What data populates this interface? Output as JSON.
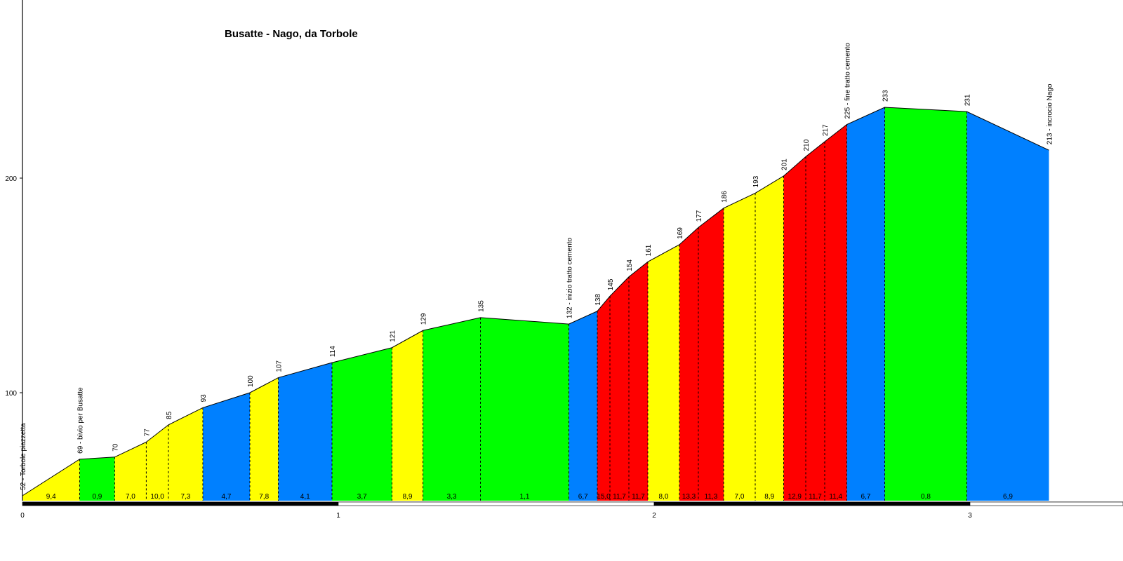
{
  "chart_data": {
    "type": "area",
    "title": "Busatte - Nago, da Torbole",
    "xlabel": "",
    "ylabel": "",
    "xlim": [
      0,
      3.4
    ],
    "ylim": [
      49,
      283
    ],
    "x_ticks": [
      "0",
      "1",
      "2",
      "3"
    ],
    "y_ticks": [
      "100",
      "200"
    ],
    "grade_colors": {
      "low": "#00ff00",
      "moderate": "#ffff00",
      "steep": "#0080ff",
      "very-steep": "#ff0000"
    },
    "points": [
      {
        "x": 0.0,
        "y": 52,
        "label": "52 - Torbole piazzetta"
      },
      {
        "x": 0.181,
        "y": 69,
        "label": "69 - bivio per Busatte"
      },
      {
        "x": 0.292,
        "y": 70,
        "label": "70"
      },
      {
        "x": 0.392,
        "y": 77,
        "label": "77"
      },
      {
        "x": 0.462,
        "y": 85,
        "label": "85"
      },
      {
        "x": 0.571,
        "y": 93,
        "label": "93"
      },
      {
        "x": 0.72,
        "y": 100,
        "label": "100"
      },
      {
        "x": 0.81,
        "y": 107,
        "label": "107"
      },
      {
        "x": 0.98,
        "y": 114,
        "label": "114"
      },
      {
        "x": 1.17,
        "y": 121,
        "label": "121"
      },
      {
        "x": 1.268,
        "y": 129,
        "label": "129"
      },
      {
        "x": 1.45,
        "y": 135,
        "label": "135"
      },
      {
        "x": 1.73,
        "y": 132,
        "label": "132 - inizio tratto cemento"
      },
      {
        "x": 1.82,
        "y": 138,
        "label": "138"
      },
      {
        "x": 1.86,
        "y": 145,
        "label": "145"
      },
      {
        "x": 1.92,
        "y": 154,
        "label": "154"
      },
      {
        "x": 1.98,
        "y": 161,
        "label": "161"
      },
      {
        "x": 2.08,
        "y": 169,
        "label": "169"
      },
      {
        "x": 2.14,
        "y": 177,
        "label": "177"
      },
      {
        "x": 2.22,
        "y": 186,
        "label": "186"
      },
      {
        "x": 2.32,
        "y": 193,
        "label": "193"
      },
      {
        "x": 2.41,
        "y": 201,
        "label": "201"
      },
      {
        "x": 2.48,
        "y": 210,
        "label": "210"
      },
      {
        "x": 2.54,
        "y": 217,
        "label": "217"
      },
      {
        "x": 2.61,
        "y": 225,
        "label": "225 - fine tratto cemento"
      },
      {
        "x": 2.73,
        "y": 233,
        "label": "233"
      },
      {
        "x": 2.99,
        "y": 231,
        "label": "231"
      },
      {
        "x": 3.25,
        "y": 213,
        "label": "213 - incrocio Nago"
      }
    ],
    "segments": [
      {
        "grade": "9,4",
        "class": "moderate"
      },
      {
        "grade": "0,9",
        "class": "low"
      },
      {
        "grade": "7,0",
        "class": "moderate"
      },
      {
        "grade": "10,0",
        "class": "moderate"
      },
      {
        "grade": "7,3",
        "class": "moderate"
      },
      {
        "grade": "4,7",
        "class": "steep"
      },
      {
        "grade": "7,8",
        "class": "moderate"
      },
      {
        "grade": "4,1",
        "class": "steep"
      },
      {
        "grade": "3,7",
        "class": "low"
      },
      {
        "grade": "8,9",
        "class": "moderate"
      },
      {
        "grade": "3,3",
        "class": "low"
      },
      {
        "grade": "1,1",
        "class": "low"
      },
      {
        "grade": "6,7",
        "class": "steep"
      },
      {
        "grade": "15,0",
        "class": "very-steep"
      },
      {
        "grade": "11,7",
        "class": "very-steep"
      },
      {
        "grade": "11,7",
        "class": "very-steep"
      },
      {
        "grade": "8,0",
        "class": "moderate"
      },
      {
        "grade": "13,3",
        "class": "very-steep"
      },
      {
        "grade": "11,3",
        "class": "very-steep"
      },
      {
        "grade": "7,0",
        "class": "moderate"
      },
      {
        "grade": "8,9",
        "class": "moderate"
      },
      {
        "grade": "12,9",
        "class": "very-steep"
      },
      {
        "grade": "11,7",
        "class": "very-steep"
      },
      {
        "grade": "11,4",
        "class": "very-steep"
      },
      {
        "grade": "6,7",
        "class": "steep"
      },
      {
        "grade": "0,8",
        "class": "low"
      },
      {
        "grade": "6,9",
        "class": "steep"
      }
    ]
  }
}
